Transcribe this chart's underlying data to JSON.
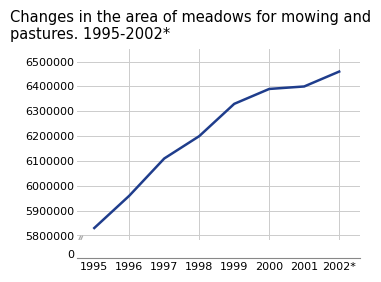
{
  "title": "Changes in the area of meadows for mowing and\npastures. 1995-2002*",
  "x_labels": [
    "1995",
    "1996",
    "1997",
    "1998",
    "1999",
    "2000",
    "2001",
    "2002*"
  ],
  "x_values": [
    1995,
    1996,
    1997,
    1998,
    1999,
    2000,
    2001,
    2002
  ],
  "y_values": [
    5830000,
    5960000,
    6110000,
    6200000,
    6330000,
    6390000,
    6400000,
    6460000
  ],
  "line_color": "#1f3d8c",
  "line_width": 1.8,
  "ylim_top_main": 6550000,
  "ylim_bottom_main": 5780000,
  "ylim_top_zero": 200000,
  "ylim_bottom_zero": -50000,
  "yticks_main": [
    5800000,
    5900000,
    6000000,
    6100000,
    6200000,
    6300000,
    6400000,
    6500000
  ],
  "yticks_zero": [
    0
  ],
  "title_fontsize": 10.5,
  "tick_fontsize": 8.0,
  "title_color": "#000000",
  "background_color": "#ffffff",
  "plot_bg_color": "#ffffff",
  "grid_color": "#cccccc",
  "grid_linewidth": 0.7,
  "axis_line_color": "#888888",
  "title_bar_color": "#3cbfbf",
  "break_line_color": "#aaaaaa",
  "xlim_left": 1994.5,
  "xlim_right": 2002.6
}
